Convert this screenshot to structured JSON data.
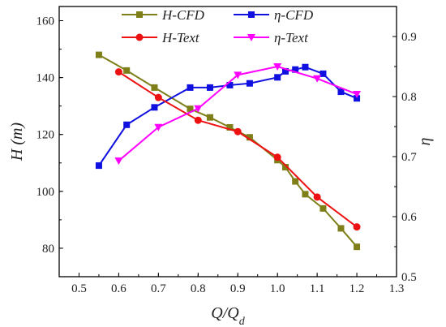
{
  "chart_data": {
    "type": "line",
    "xlabel": "Q/Qd",
    "ylabel_left": "H (m)",
    "ylabel_right": "η",
    "xlim": [
      0.45,
      1.3
    ],
    "ylim_left": [
      70,
      165
    ],
    "ylim_right": [
      0.5,
      0.95
    ],
    "x_ticks": [
      0.5,
      0.6,
      0.7,
      0.8,
      0.9,
      1.0,
      1.1,
      1.2,
      1.3
    ],
    "y_left_ticks": [
      80,
      100,
      120,
      140,
      160
    ],
    "y_right_ticks": [
      0.5,
      0.6,
      0.7,
      0.8,
      0.9
    ],
    "legend_position": "top",
    "series": [
      {
        "name": "H-CFD",
        "axis": "left",
        "color": "#7f7f1a",
        "marker": "square",
        "x": [
          0.55,
          0.62,
          0.69,
          0.78,
          0.83,
          0.88,
          0.93,
          1.0,
          1.02,
          1.045,
          1.07,
          1.115,
          1.16,
          1.2
        ],
        "y": [
          148,
          142.5,
          136.5,
          129,
          126,
          122.5,
          119,
          111,
          108.5,
          103.5,
          99,
          94,
          87,
          80.5
        ]
      },
      {
        "name": "η-CFD",
        "axis": "right",
        "color": "#1010e0",
        "marker": "square",
        "x": [
          0.55,
          0.62,
          0.69,
          0.78,
          0.83,
          0.88,
          0.93,
          1.0,
          1.02,
          1.045,
          1.07,
          1.115,
          1.16,
          1.2
        ],
        "y": [
          0.685,
          0.753,
          0.782,
          0.815,
          0.815,
          0.819,
          0.822,
          0.832,
          0.842,
          0.845,
          0.849,
          0.838,
          0.808,
          0.797
        ]
      },
      {
        "name": "H-Text",
        "axis": "left",
        "color": "#ee1111",
        "marker": "circle",
        "x": [
          0.6,
          0.7,
          0.8,
          0.9,
          1.0,
          1.1,
          1.2
        ],
        "y": [
          142,
          133,
          125,
          121,
          112,
          98,
          87.5
        ]
      },
      {
        "name": "η-Text",
        "axis": "right",
        "color": "#ff00ff",
        "marker": "triangle-down",
        "x": [
          0.6,
          0.7,
          0.8,
          0.9,
          1.0,
          1.1,
          1.2
        ],
        "y": [
          0.693,
          0.749,
          0.78,
          0.836,
          0.85,
          0.83,
          0.804
        ]
      }
    ]
  }
}
